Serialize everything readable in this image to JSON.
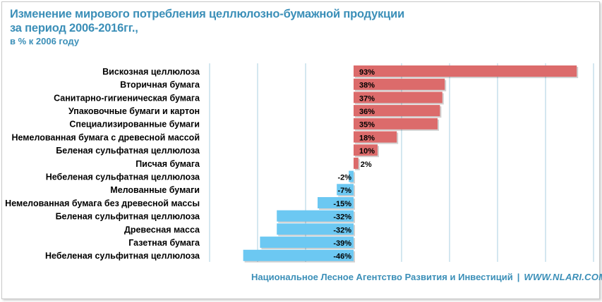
{
  "title": {
    "line1": "Изменение мирового потребления целлюлозно-бумажной продукции",
    "line2": "за период 2006-2016гг.,",
    "line3": "в % к 2006 году"
  },
  "footer": {
    "org": "Национальное Лесное Агентство Развития и Инвестиций",
    "separator": "|",
    "url": "WWW.NLARI.COM"
  },
  "colors": {
    "positive": "#dc6b6b",
    "negative": "#6cc8f2",
    "gridline": "#a9cfe0",
    "title": "#3b8fb8"
  },
  "chart_data": {
    "type": "bar",
    "orientation": "horizontal",
    "title": "Изменение мирового потребления целлюлозно-бумажной продукции за период 2006-2016гг., в % к 2006 году",
    "xlabel": "",
    "ylabel": "",
    "xlim": [
      -60,
      100
    ],
    "grid": true,
    "categories": [
      "Вискозная целлюлоза",
      "Вторичная бумага",
      "Санитарно-гигиеническая бумага",
      "Упаковочные бумаги и картон",
      "Специализированные бумаги",
      "Немелованная бумага с древесной массой",
      "Беленая сульфатная целлюлоза",
      "Писчая бумага",
      "Небеленая сульфатная целлюлоза",
      "Мелованные бумаги",
      "Немелованная бумага без древесной массы",
      "Беленая сульфитная целлюлоза",
      "Древесная масса",
      "Газетная бумага",
      "Небеленая сульфитная целлюлоза"
    ],
    "values": [
      93,
      38,
      37,
      36,
      35,
      18,
      10,
      2,
      -2,
      -7,
      -15,
      -32,
      -32,
      -39,
      -46
    ],
    "data_labels": [
      "93%",
      "38%",
      "37%",
      "36%",
      "35%",
      "18%",
      "10%",
      "2%",
      "-2%",
      "-7%",
      "-15%",
      "-32%",
      "-32%",
      "-39%",
      "-46%"
    ]
  }
}
